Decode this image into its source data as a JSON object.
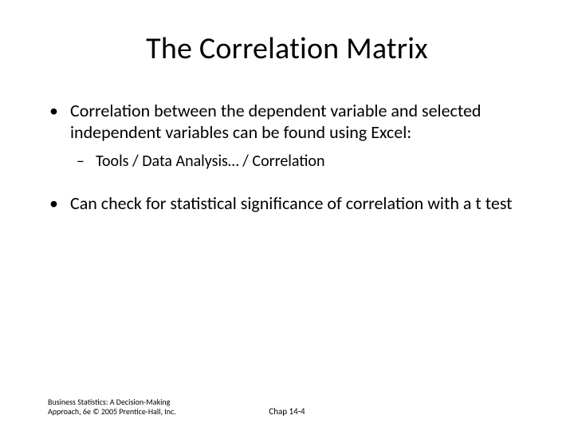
{
  "title": "The Correlation Matrix",
  "bullets": {
    "b1": "Correlation between the dependent variable and selected independent variables can be found using Excel:",
    "b1_sub1": "Tools / Data Analysis… / Correlation",
    "b2": "Can check for statistical significance of correlation with a t test"
  },
  "footer": {
    "left": "Business Statistics: A Decision-Making Approach, 6e © 2005 Prentice-Hall, Inc.",
    "center": "Chap 14-4"
  },
  "colors": {
    "background": "#ffffff",
    "text": "#000000"
  },
  "typography": {
    "title_fontsize": 38,
    "body_fontsize": 22,
    "sub_fontsize": 20,
    "footer_fontsize": 10
  }
}
